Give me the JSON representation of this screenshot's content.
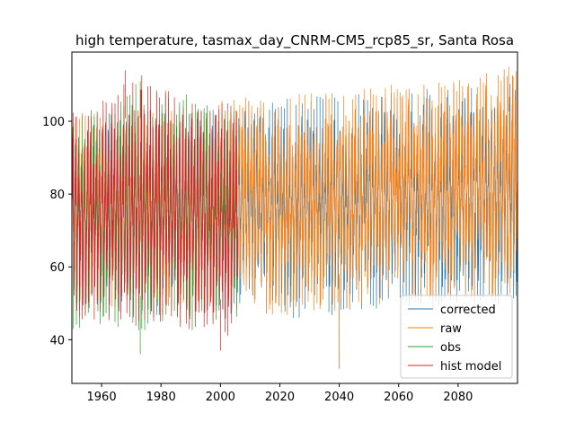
{
  "chart_data": {
    "type": "line",
    "title": "high temperature, tasmax_day_CNRM-CM5_rcp85_sr, Santa Rosa",
    "xlabel": "",
    "ylabel": "",
    "xlim": [
      1950,
      2100
    ],
    "ylim": [
      28,
      119
    ],
    "x_ticks": [
      1960,
      1980,
      2000,
      2020,
      2040,
      2060,
      2080
    ],
    "y_ticks": [
      40,
      60,
      80,
      100
    ],
    "grid": false,
    "legend_position": "lower-right",
    "series": [
      {
        "name": "corrected",
        "color": "#1f77b4",
        "x_range": [
          1950,
          2100
        ],
        "approx_annual_min": [
          48,
          48,
          47,
          46,
          47,
          46,
          47,
          45,
          46,
          47,
          48,
          50,
          48,
          50,
          49,
          49
        ],
        "approx_annual_max": [
          101,
          103,
          102,
          104,
          103,
          105,
          106,
          106,
          107,
          107,
          108,
          110,
          110,
          111,
          112,
          113
        ],
        "extremes": {
          "min": 32,
          "min_year": 2040,
          "max": 113,
          "max_year": 2097
        }
      },
      {
        "name": "raw",
        "color": "#ff7f0e",
        "x_range": [
          1950,
          2100
        ],
        "approx_annual_min": [
          49,
          49,
          48,
          47,
          48,
          47,
          48,
          46,
          47,
          48,
          49,
          51,
          49,
          51,
          50,
          50
        ],
        "approx_annual_max": [
          102,
          104,
          103,
          105,
          104,
          106,
          107,
          107,
          108,
          108,
          109,
          111,
          111,
          112,
          114,
          115
        ],
        "extremes": {
          "min": 33,
          "min_year": 2040,
          "max": 115,
          "max_year": 2097
        }
      },
      {
        "name": "obs",
        "color": "#2ca02c",
        "x_range": [
          1950,
          2006
        ],
        "approx_annual_min": [
          43,
          44,
          42,
          45,
          41,
          44
        ],
        "approx_annual_max": [
          106,
          104,
          111,
          110,
          105,
          103
        ],
        "extremes": {
          "min": 36,
          "min_year": 1973,
          "max": 111,
          "max_year": 1973
        }
      },
      {
        "name": "hist model",
        "color": "#d62728",
        "x_range": [
          1950,
          2006
        ],
        "approx_annual_min": [
          45,
          44,
          43,
          44,
          42,
          40
        ],
        "approx_annual_max": [
          103,
          106,
          114,
          108,
          106,
          104
        ],
        "extremes": {
          "min": 37,
          "min_year": 2000,
          "max": 114,
          "max_year": 1968
        }
      }
    ]
  }
}
